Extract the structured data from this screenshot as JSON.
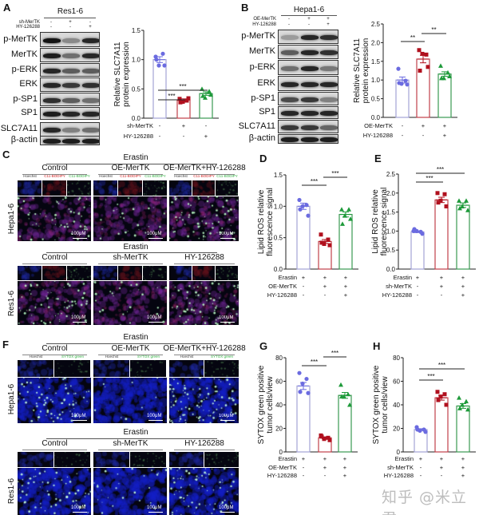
{
  "panels": {
    "A": "A",
    "B": "B",
    "C": "C",
    "D": "D",
    "E": "E",
    "F": "F",
    "G": "G",
    "H": "H"
  },
  "blots": [
    {
      "id": "A",
      "cell_line": "Res1-6",
      "conditions": [
        {
          "label": "sh-MerTK",
          "signs": [
            "-",
            "+",
            "-"
          ]
        },
        {
          "label": "HY-126288",
          "signs": [
            "-",
            "-",
            "+"
          ]
        }
      ],
      "rows": [
        {
          "label": "p-MerTK",
          "intensity": [
            1,
            0.35,
            0.9
          ]
        },
        {
          "label": "MerTK",
          "intensity": [
            0.95,
            0.5,
            0.9
          ]
        },
        {
          "label": "p-ERK",
          "intensity": [
            0.9,
            0.6,
            0.6
          ]
        },
        {
          "label": "ERK",
          "intensity": [
            0.9,
            0.8,
            0.85
          ]
        },
        {
          "label": "p-SP1",
          "intensity": [
            0.85,
            0.6,
            0.5
          ]
        },
        {
          "label": "SP1",
          "intensity": [
            0.95,
            0.9,
            0.9
          ]
        },
        {
          "label": "SLC7A11",
          "intensity": [
            0.9,
            0.4,
            0.5
          ]
        },
        {
          "label": "β-actin",
          "intensity": [
            0.95,
            0.95,
            0.95
          ]
        }
      ]
    },
    {
      "id": "B",
      "cell_line": "Hepa1-6",
      "conditions": [
        {
          "label": "OE-MerTK",
          "signs": [
            "-",
            "+",
            "+"
          ]
        },
        {
          "label": "HY-126288",
          "signs": [
            "-",
            "-",
            "+"
          ]
        }
      ],
      "rows": [
        {
          "label": "p-MerTK",
          "intensity": [
            0.25,
            0.9,
            0.85
          ]
        },
        {
          "label": "MerTK",
          "intensity": [
            0.6,
            0.9,
            0.85
          ]
        },
        {
          "label": "p-ERK",
          "intensity": [
            0.5,
            0.9,
            0.45
          ]
        },
        {
          "label": "ERK",
          "intensity": [
            0.9,
            0.9,
            0.9
          ]
        },
        {
          "label": "p-SP1",
          "intensity": [
            0.7,
            0.8,
            0.4
          ]
        },
        {
          "label": "SP1",
          "intensity": [
            0.9,
            0.9,
            0.9
          ]
        },
        {
          "label": "SLC7A11",
          "intensity": [
            0.8,
            0.8,
            0.55
          ]
        },
        {
          "label": "β-actin",
          "intensity": [
            0.95,
            0.95,
            0.95
          ]
        }
      ]
    }
  ],
  "micrographs": [
    {
      "id": "C",
      "blocks": [
        {
          "row_label": "Hepa1-6",
          "treatment": "Erastin",
          "columns": [
            "Control",
            "OE-MerTK",
            "OE-MerTK+HY-126288"
          ],
          "channels": [
            "Hoechst",
            "C11-BODIPY",
            "C11-BODIPY"
          ],
          "scale_bar": "100μM"
        },
        {
          "row_label": "Res1-6",
          "treatment": "Erastin",
          "columns": [
            "Control",
            "sh-MerTK",
            "HY-126288"
          ],
          "channels": [],
          "scale_bar": "100μM"
        }
      ]
    },
    {
      "id": "F",
      "blocks": [
        {
          "row_label": "Hepa1-6",
          "treatment": "Erastin",
          "columns": [
            "Control",
            "OE-MerTK",
            "OE-MerTK+HY-126288"
          ],
          "channels": [
            "Hoechst",
            "SYTOX green"
          ],
          "scale_bar": "100μM"
        },
        {
          "row_label": "Res1-6",
          "treatment": "Erastin",
          "columns": [
            "Control",
            "sh-MerTK",
            "HY-126288"
          ],
          "channels": [],
          "scale_bar": "100μM"
        }
      ]
    }
  ],
  "colors": {
    "group1": "#6b6be0",
    "group2": "#b0101e",
    "group3": "#1e9a3a",
    "bar1": "#a3a3d6",
    "bar2": "#c0404a",
    "bar3": "#3a9a52",
    "channel_hoechst": "#333333",
    "channel_red": "#d02020",
    "channel_green": "#30b040"
  },
  "chart_data": [
    {
      "id": "A",
      "type": "bar",
      "ylabel": [
        "Relative SLC7A11",
        "protein expression"
      ],
      "ylim": [
        0,
        1.5
      ],
      "ticks": [
        "0.0",
        "0.5",
        "1.0",
        "1.5"
      ],
      "tick_values": [
        0,
        0.5,
        1.0,
        1.5
      ],
      "conditions": [
        {
          "label": "sh-MerTK",
          "signs": [
            "-",
            "+",
            "-"
          ]
        },
        {
          "label": "HY-126288",
          "signs": [
            "-",
            "-",
            "+"
          ]
        }
      ],
      "groups": [
        {
          "mean": 1.0,
          "sem": 0.05,
          "points": [
            1.05,
            1.1,
            0.9,
            0.9,
            1.0
          ]
        },
        {
          "mean": 0.31,
          "sem": 0.02,
          "points": [
            0.33,
            0.3,
            0.28,
            0.34,
            0.27
          ]
        },
        {
          "mean": 0.42,
          "sem": 0.03,
          "points": [
            0.5,
            0.46,
            0.35,
            0.4,
            0.38
          ]
        }
      ],
      "significance": [
        {
          "from": 1,
          "to": 2,
          "label": "***"
        },
        {
          "from": 1,
          "to": 3,
          "label": "***"
        }
      ]
    },
    {
      "id": "B",
      "type": "bar",
      "ylabel": [
        "Relative SLC7A11",
        "protein expression"
      ],
      "ylim": [
        0,
        2.5
      ],
      "ticks": [
        "0.0",
        "0.5",
        "1.0",
        "1.5",
        "2.0",
        "2.5"
      ],
      "tick_values": [
        0,
        0.5,
        1,
        1.5,
        2,
        2.5
      ],
      "conditions": [
        {
          "label": "OE-MerTK",
          "signs": [
            "-",
            "+",
            "+"
          ]
        },
        {
          "label": "HY-126288",
          "signs": [
            "-",
            "-",
            "+"
          ]
        }
      ],
      "groups": [
        {
          "mean": 1.0,
          "sem": 0.08,
          "points": [
            1.3,
            0.98,
            0.9,
            0.88,
            0.92
          ]
        },
        {
          "mean": 1.56,
          "sem": 0.1,
          "points": [
            1.8,
            1.68,
            1.7,
            1.35,
            1.25
          ]
        },
        {
          "mean": 1.16,
          "sem": 0.06,
          "points": [
            1.38,
            1.2,
            1.05,
            1.1,
            1.05
          ]
        }
      ],
      "significance": [
        {
          "from": 1,
          "to": 2,
          "label": "**"
        },
        {
          "from": 2,
          "to": 3,
          "label": "**"
        }
      ]
    },
    {
      "id": "D",
      "type": "bar",
      "ylabel": [
        "Lipid ROS relative",
        "fluorescence signal"
      ],
      "ylim": [
        0,
        1.5
      ],
      "ticks": [
        "0.0",
        "0.5",
        "1.0",
        "1.5"
      ],
      "tick_values": [
        0,
        0.5,
        1,
        1.5
      ],
      "conditions": [
        {
          "label": "Erastin",
          "signs": [
            "+",
            "+",
            "+"
          ]
        },
        {
          "label": "OE-MerTK",
          "signs": [
            "-",
            "+",
            "+"
          ]
        },
        {
          "label": "HY-126288",
          "signs": [
            "-",
            "-",
            "+"
          ]
        }
      ],
      "groups": [
        {
          "mean": 1.0,
          "sem": 0.05,
          "points": [
            1.1,
            1.02,
            1.0,
            0.85,
            0.95
          ]
        },
        {
          "mean": 0.44,
          "sem": 0.03,
          "points": [
            0.55,
            0.47,
            0.4,
            0.38,
            0.42
          ]
        },
        {
          "mean": 0.87,
          "sem": 0.04,
          "points": [
            0.95,
            0.95,
            0.85,
            0.8,
            0.72
          ]
        }
      ],
      "significance": [
        {
          "from": 1,
          "to": 2,
          "label": "***"
        },
        {
          "from": 2,
          "to": 3,
          "label": "***"
        }
      ]
    },
    {
      "id": "E",
      "type": "bar",
      "ylabel": [
        "Lipid ROS relative",
        "fluorescence signal"
      ],
      "ylim": [
        0,
        2.5
      ],
      "ticks": [
        "0.0",
        "0.5",
        "1.0",
        "1.5",
        "2.0",
        "2.5"
      ],
      "tick_values": [
        0,
        0.5,
        1,
        1.5,
        2,
        2.5
      ],
      "conditions": [
        {
          "label": "Erastin",
          "signs": [
            "+",
            "+",
            "+"
          ]
        },
        {
          "label": "sh-MerTK",
          "signs": [
            "-",
            "+",
            "+"
          ]
        },
        {
          "label": "HY-126288",
          "signs": [
            "-",
            "-",
            "+"
          ]
        }
      ],
      "groups": [
        {
          "mean": 0.98,
          "sem": 0.02,
          "points": [
            1.0,
            0.98,
            1.0,
            0.93,
            1.05
          ]
        },
        {
          "mean": 1.82,
          "sem": 0.07,
          "points": [
            2.0,
            1.97,
            1.8,
            1.65,
            1.75
          ]
        },
        {
          "mean": 1.68,
          "sem": 0.06,
          "points": [
            1.8,
            1.8,
            1.65,
            1.55,
            1.6
          ]
        }
      ],
      "significance": [
        {
          "from": 1,
          "to": 2,
          "label": "***"
        },
        {
          "from": 1,
          "to": 3,
          "label": "***"
        }
      ]
    },
    {
      "id": "G",
      "type": "bar",
      "ylabel": [
        "SYTOX green positive",
        "tumor cells/view"
      ],
      "ylim": [
        0,
        80
      ],
      "ticks": [
        "0",
        "20",
        "40",
        "60",
        "80"
      ],
      "tick_values": [
        0,
        20,
        40,
        60,
        80
      ],
      "conditions": [
        {
          "label": "Erastin",
          "signs": [
            "+",
            "+",
            "+"
          ]
        },
        {
          "label": "OE-MerTK",
          "signs": [
            "-",
            "+",
            "+"
          ]
        },
        {
          "label": "HY-126288",
          "signs": [
            "-",
            "-",
            "+"
          ]
        }
      ],
      "groups": [
        {
          "mean": 56,
          "sem": 3,
          "points": [
            67,
            62,
            58,
            50,
            51
          ]
        },
        {
          "mean": 12,
          "sem": 0.8,
          "points": [
            14,
            12,
            11,
            10,
            13
          ]
        },
        {
          "mean": 48,
          "sem": 2.5,
          "points": [
            57,
            49,
            47,
            40,
            47
          ]
        }
      ],
      "significance": [
        {
          "from": 1,
          "to": 2,
          "label": "***"
        },
        {
          "from": 2,
          "to": 3,
          "label": "***"
        }
      ]
    },
    {
      "id": "H",
      "type": "bar",
      "ylabel": [
        "SYTOX green positive",
        "tumor cells/view"
      ],
      "ylim": [
        0,
        80
      ],
      "ticks": [
        "0",
        "20",
        "40",
        "60",
        "80"
      ],
      "tick_values": [
        0,
        20,
        40,
        60,
        80
      ],
      "conditions": [
        {
          "label": "Erastin",
          "signs": [
            "+",
            "+",
            "+"
          ]
        },
        {
          "label": "sh-MerTK",
          "signs": [
            "-",
            "+",
            "+"
          ]
        },
        {
          "label": "HY-126288",
          "signs": [
            "-",
            "-",
            "+"
          ]
        }
      ],
      "groups": [
        {
          "mean": 19,
          "sem": 0.7,
          "points": [
            21,
            19,
            18,
            17,
            19
          ]
        },
        {
          "mean": 46,
          "sem": 2,
          "points": [
            51,
            49,
            47,
            40,
            44
          ]
        },
        {
          "mean": 39,
          "sem": 2,
          "points": [
            46,
            43,
            40,
            36,
            37
          ]
        }
      ],
      "significance": [
        {
          "from": 1,
          "to": 2,
          "label": "***"
        },
        {
          "from": 1,
          "to": 3,
          "label": "***"
        }
      ]
    }
  ],
  "watermark": "知乎 @米立君"
}
